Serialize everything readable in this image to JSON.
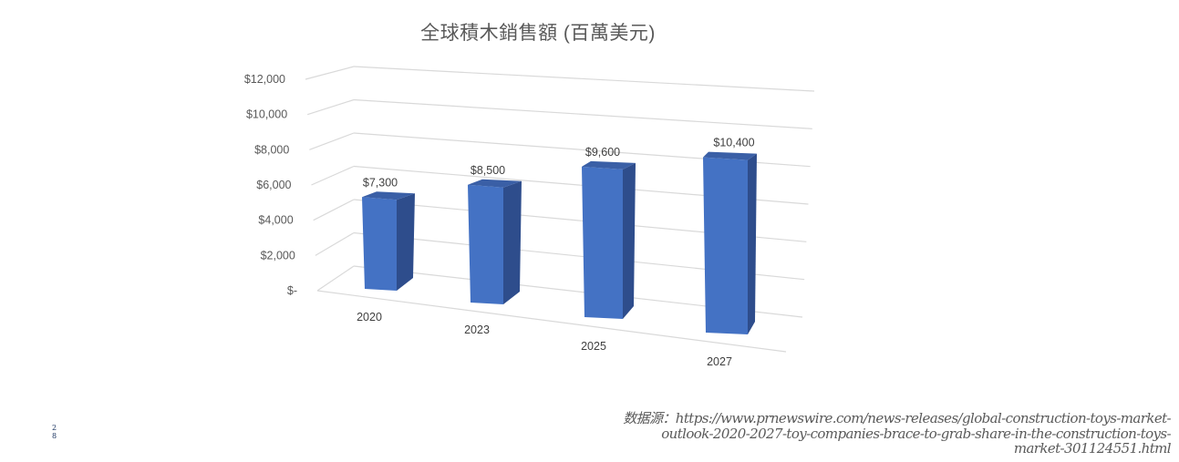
{
  "chart_data": {
    "type": "bar",
    "style": "3d-column",
    "title": "全球積木銷售額 (百萬美元)",
    "categories": [
      "2020",
      "2023",
      "2025",
      "2027"
    ],
    "values": [
      7300,
      8500,
      9600,
      10400
    ],
    "data_labels": [
      "$7,300",
      "$8,500",
      "$9,600",
      "$10,400"
    ],
    "xlabel": "",
    "ylabel": "",
    "ylim": [
      0,
      12000
    ],
    "yticks": [
      0,
      2000,
      4000,
      6000,
      8000,
      10000,
      12000
    ],
    "ytick_labels": [
      "$-",
      "$2,000",
      "$4,000",
      "$6,000",
      "$8,000",
      "$10,000",
      "$12,000"
    ],
    "grid": true,
    "legend": "none",
    "bar_color": "#4472C4",
    "bar_side_color": "#2E4D8C",
    "bar_top_color": "#3A5FA6"
  },
  "source": {
    "prefix": "数据源：",
    "url": "https://www.prnewswire.com/news-releases/global-construction-toys-market-outlook-2020-2027-toy-companies-brace-to-grab-share-in-the-construction-toys-market-301124551.html",
    "lines": [
      "数据源：https://www.prnewswire.com/news-releases/global-construction-toys-market-",
      "outlook-2020-2027-toy-companies-brace-to-grab-share-in-the-construction-toys-",
      "market-301124551.html"
    ]
  },
  "page_number": {
    "line1": "2",
    "line2": "8"
  }
}
